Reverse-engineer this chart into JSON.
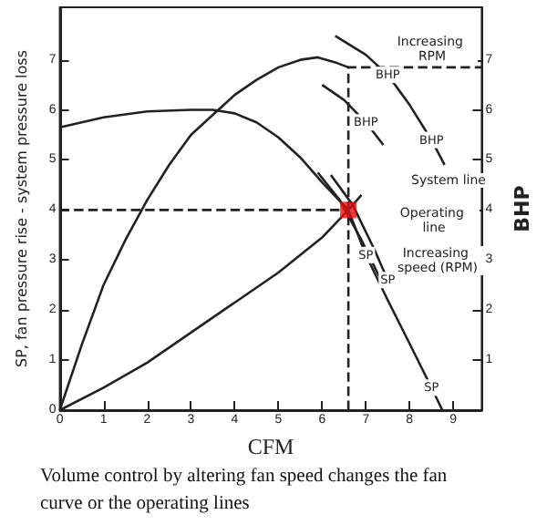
{
  "chart_data": {
    "type": "line",
    "xlabel": "CFM",
    "ylabel": "SP, fan pressure rise - system pressure loss",
    "y2label": "BHP",
    "xlim": [
      0,
      9.65
    ],
    "xticks": [
      0,
      1,
      2,
      3,
      4,
      5,
      6,
      7,
      8,
      9
    ],
    "ylim": [
      0,
      8.05
    ],
    "yticks": [
      0,
      1,
      2,
      3,
      4,
      5,
      6,
      7
    ],
    "y2lim": [
      0,
      8.05
    ],
    "y2ticks": [
      1,
      2,
      3,
      4,
      5,
      6,
      7
    ],
    "grid": false,
    "marker": "none",
    "line_style": "solid",
    "series": [
      {
        "color": "#222222",
        "x": [
          0,
          1,
          2,
          3,
          3.5,
          4,
          4.5,
          5,
          5.5,
          6,
          6.6,
          7,
          7.5,
          8,
          8.5,
          8.75
        ],
        "values": [
          5.65,
          5.85,
          5.97,
          6.0,
          6.0,
          5.93,
          5.75,
          5.45,
          5.05,
          4.55,
          4.0,
          3.1,
          2.2,
          1.33,
          0.45,
          0
        ]
      },
      {
        "color": "#222222",
        "x": [
          5.9,
          6.4,
          6.9,
          7.4
        ],
        "values": [
          4.75,
          4.2,
          3.4,
          2.5
        ]
      },
      {
        "color": "#222222",
        "x": [
          6.2,
          6.7,
          7.2,
          7.5
        ],
        "values": [
          4.7,
          4.1,
          3.2,
          2.6
        ]
      },
      {
        "color": "#222222",
        "x": [
          0,
          0.5,
          1,
          1.5,
          2,
          2.5,
          3,
          3.5,
          4,
          4.5,
          5,
          5.5,
          5.9,
          6.3,
          6.6
        ],
        "values": [
          0,
          1.3,
          2.5,
          3.4,
          4.2,
          4.9,
          5.5,
          5.9,
          6.3,
          6.6,
          6.85,
          7.0,
          7.05,
          6.95,
          6.85
        ]
      },
      {
        "color": "#222222",
        "x": [
          6.0,
          6.5,
          7.0,
          7.4
        ],
        "values": [
          6.5,
          6.2,
          5.75,
          5.3
        ]
      },
      {
        "color": "#222222",
        "x": [
          6.3,
          7,
          7.5,
          8,
          8.5,
          8.8
        ],
        "values": [
          7.48,
          7.1,
          6.7,
          6.1,
          5.4,
          4.9
        ]
      },
      {
        "color": "#222222",
        "x": [
          0,
          1,
          2,
          3,
          4,
          5,
          6,
          6.6,
          6.9
        ],
        "values": [
          0,
          0.45,
          0.95,
          1.55,
          2.15,
          2.75,
          3.45,
          4.0,
          4.3
        ]
      },
      {
        "color": "#222222",
        "line_style": "dashed",
        "x": [
          0,
          6.6
        ],
        "values": [
          4,
          4
        ]
      },
      {
        "color": "#222222",
        "line_style": "dashed",
        "x": [
          6.6,
          6.6,
          9.65
        ],
        "values": [
          0,
          6.85,
          6.85
        ]
      },
      {
        "type": "scatter",
        "marker": "square",
        "color": "#e01010",
        "x": [
          6.6
        ],
        "values": [
          4
        ]
      }
    ],
    "annotations": [
      "Increasing RPM",
      {
        "text": "BHP",
        "x": 7.5,
        "y": 6.7
      },
      {
        "text": "BHP",
        "x": 7,
        "y": 5.75
      },
      {
        "text": "BHP",
        "x": 8.5,
        "y": 5.4
      },
      "System line",
      "Operating line",
      "Increasing speed (RPM)",
      {
        "text": "SP",
        "x": 7,
        "y": 3.1
      },
      {
        "text": "SP",
        "x": 7.5,
        "y": 2.6
      },
      {
        "text": "SP",
        "x": 8.5,
        "y": 0.45
      },
      "Volume control by altering fan speed changes the fan curve or the operating lines"
    ]
  }
}
